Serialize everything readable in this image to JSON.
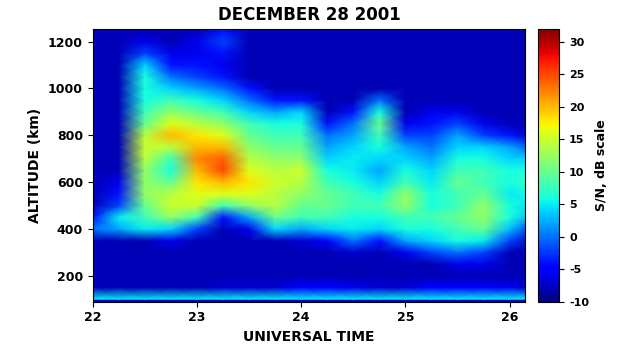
{
  "chart_data": {
    "type": "heatmap",
    "title": "DECEMBER 28 2001",
    "x_label": "UNIVERSAL TIME",
    "y_label": "ALTITUDE (km)",
    "colorbar_label": "S/N, dB scale",
    "x": [
      22.0,
      22.25,
      22.5,
      22.75,
      23.0,
      23.25,
      23.5,
      23.75,
      24.0,
      24.25,
      24.5,
      24.75,
      25.0,
      25.25,
      25.5,
      25.75,
      26.0,
      26.25
    ],
    "y": [
      100,
      150,
      200,
      250,
      300,
      350,
      400,
      450,
      500,
      550,
      600,
      650,
      700,
      750,
      800,
      850,
      900,
      950,
      1000,
      1050,
      1100,
      1150,
      1200,
      1250
    ],
    "cells": [
      [
        5,
        5,
        5,
        5,
        5,
        5,
        5,
        5,
        5,
        5,
        5,
        5,
        5,
        5,
        5,
        5,
        5,
        5
      ],
      [
        -8,
        -8,
        -8,
        -8,
        -8,
        -7,
        -7,
        -7,
        -5,
        -5,
        -6,
        -7,
        -7,
        -5,
        -5,
        -5,
        -6,
        -7
      ],
      [
        -8,
        -8,
        -8,
        -8,
        -8,
        -8,
        -8,
        -8,
        -8,
        -8,
        -8,
        -8,
        -8,
        -8,
        -8,
        -8,
        -8,
        -8
      ],
      [
        -8,
        -8,
        -8,
        -8,
        -8,
        -8,
        -8,
        -8,
        -8,
        -8,
        -8,
        -8,
        -8,
        -8,
        -6,
        -6,
        -8,
        -8
      ],
      [
        -8,
        -8,
        -8,
        -8,
        -8,
        -8,
        -8,
        -8,
        -8,
        -8,
        -7,
        -8,
        -6,
        -2,
        0,
        -2,
        -8,
        -8
      ],
      [
        -8,
        -8,
        -8,
        -6,
        -8,
        -8,
        -8,
        -8,
        -7,
        -5,
        0,
        -4,
        2,
        4,
        6,
        5,
        -2,
        -8
      ],
      [
        0,
        2,
        5,
        4,
        -2,
        -8,
        -6,
        4,
        2,
        4,
        5,
        4,
        6,
        6,
        8,
        10,
        3,
        -4
      ],
      [
        -4,
        5,
        8,
        12,
        8,
        -4,
        2,
        10,
        8,
        8,
        6,
        6,
        8,
        8,
        10,
        12,
        6,
        2
      ],
      [
        -8,
        -2,
        10,
        15,
        15,
        8,
        12,
        14,
        10,
        10,
        8,
        8,
        12,
        6,
        8,
        12,
        6,
        4
      ],
      [
        -8,
        -4,
        12,
        14,
        16,
        16,
        16,
        14,
        12,
        10,
        8,
        6,
        12,
        6,
        8,
        10,
        5,
        6
      ],
      [
        -8,
        -6,
        12,
        10,
        18,
        20,
        18,
        15,
        14,
        8,
        6,
        4,
        8,
        5,
        10,
        8,
        6,
        8
      ],
      [
        -8,
        -8,
        12,
        6,
        20,
        25,
        16,
        14,
        15,
        6,
        5,
        2,
        6,
        4,
        8,
        8,
        6,
        6
      ],
      [
        -8,
        -8,
        14,
        8,
        22,
        24,
        14,
        12,
        12,
        4,
        5,
        4,
        4,
        2,
        6,
        6,
        4,
        4
      ],
      [
        -8,
        -8,
        15,
        14,
        20,
        20,
        12,
        10,
        10,
        2,
        4,
        6,
        2,
        0,
        4,
        4,
        2,
        -2
      ],
      [
        -8,
        -8,
        14,
        20,
        18,
        16,
        10,
        8,
        8,
        0,
        2,
        8,
        -2,
        -2,
        2,
        -2,
        -4,
        -8
      ],
      [
        -8,
        -8,
        10,
        16,
        14,
        12,
        8,
        6,
        6,
        -4,
        0,
        10,
        -6,
        -4,
        -2,
        -6,
        -8,
        -8
      ],
      [
        -8,
        -8,
        8,
        12,
        10,
        8,
        4,
        2,
        4,
        -8,
        -4,
        6,
        -8,
        -6,
        -6,
        -8,
        -8,
        -8
      ],
      [
        -8,
        -8,
        6,
        8,
        6,
        4,
        0,
        -4,
        -4,
        -8,
        -8,
        0,
        -8,
        -8,
        -8,
        -8,
        -8,
        -8
      ],
      [
        -8,
        -8,
        6,
        4,
        2,
        0,
        -4,
        -8,
        -8,
        -8,
        -8,
        -8,
        -8,
        -8,
        -8,
        -8,
        -8,
        -8
      ],
      [
        -8,
        -8,
        6,
        0,
        -2,
        -4,
        -8,
        -8,
        -8,
        -8,
        -8,
        -8,
        -8,
        -8,
        -8,
        -8,
        -8,
        -8
      ],
      [
        -8,
        -8,
        4,
        -4,
        -4,
        -6,
        -8,
        -8,
        -8,
        -8,
        -8,
        -8,
        -8,
        -8,
        -8,
        -8,
        -8,
        -8
      ],
      [
        -8,
        -8,
        -2,
        -6,
        -6,
        -4,
        -8,
        -8,
        -8,
        -8,
        -8,
        -8,
        -8,
        -8,
        -8,
        -8,
        -8,
        -8
      ],
      [
        -8,
        -8,
        -6,
        -8,
        -6,
        -2,
        -8,
        -8,
        -8,
        -8,
        -8,
        -8,
        -8,
        -8,
        -8,
        -8,
        -8,
        -8
      ],
      [
        -8,
        -8,
        -8,
        -8,
        -8,
        -4,
        -8,
        -8,
        -8,
        -8,
        -8,
        -8,
        -8,
        -8,
        -8,
        -8,
        -8,
        -8
      ]
    ],
    "xlim": [
      22,
      26.15
    ],
    "xticks": [
      22,
      23,
      24,
      25,
      26
    ],
    "ylim": [
      90,
      1255
    ],
    "yticks": [
      200,
      400,
      600,
      800,
      1000,
      1200
    ],
    "color_range": [
      -10,
      32
    ],
    "color_ticks": [
      -10,
      -5,
      0,
      5,
      10,
      15,
      20,
      25,
      30
    ]
  }
}
